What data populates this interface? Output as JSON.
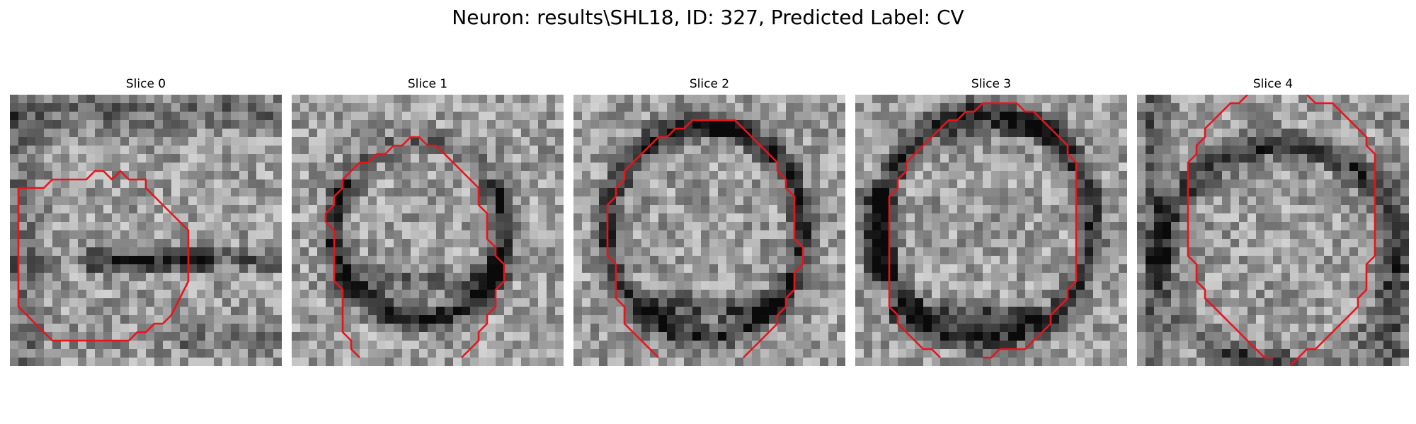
{
  "figure": {
    "title": "Neuron: results\\SHL18, ID: 327, Predicted Label: CV"
  },
  "panels": [
    {
      "label": "Slice 0",
      "dark_band": "membrane fold crossing lower middle"
    },
    {
      "label": "Slice 1",
      "dark_band": "dark ring lower-left to lower-right"
    },
    {
      "label": "Slice 2",
      "dark_band": "dark ring, heavy bottom edge"
    },
    {
      "label": "Slice 3",
      "dark_band": "dark ring, heavy left and bottom edges"
    },
    {
      "label": "Slice 4",
      "dark_band": "dark vertical edges, open top and bottom"
    }
  ],
  "contour_color": "#e8141c",
  "colormap": "grayscale"
}
